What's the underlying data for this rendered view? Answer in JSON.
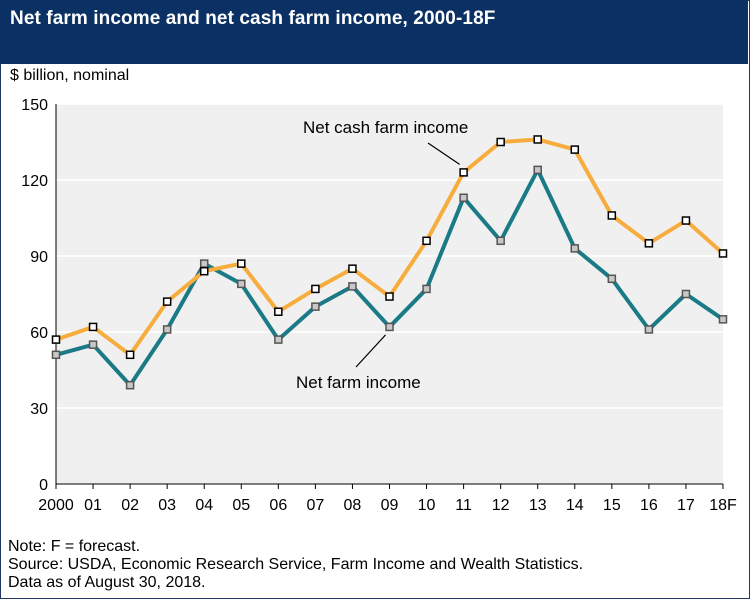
{
  "header": {
    "title": "Net farm income and net cash farm income, 2000-18F"
  },
  "units_label": "$ billion, nominal",
  "notes": [
    "Note: F = forecast.",
    "Source: USDA, Economic Research Service, Farm Income and Wealth Statistics.",
    "Data as of August 30, 2018."
  ],
  "colors": {
    "header_bg": "#0b3063",
    "plot_bg": "#f0f0f0",
    "net_cash_series": "#f7ad3e",
    "net_farm_series": "#1a7a85"
  },
  "chart_data": {
    "type": "line",
    "categories": [
      "2000",
      "01",
      "02",
      "03",
      "04",
      "05",
      "06",
      "07",
      "08",
      "09",
      "10",
      "11",
      "12",
      "13",
      "14",
      "15",
      "16",
      "17",
      "18F"
    ],
    "ylim": [
      0,
      150
    ],
    "yticks": [
      0,
      30,
      60,
      90,
      120,
      150
    ],
    "grid": true,
    "series": [
      {
        "name": "Net cash farm income",
        "values": [
          57,
          62,
          51,
          72,
          84,
          87,
          68,
          77,
          85,
          74,
          96,
          123,
          135,
          136,
          132,
          106,
          95,
          104,
          91
        ]
      },
      {
        "name": "Net farm income",
        "values": [
          51,
          55,
          39,
          61,
          87,
          79,
          57,
          70,
          78,
          62,
          77,
          113,
          96,
          124,
          93,
          81,
          61,
          75,
          65
        ]
      }
    ]
  }
}
